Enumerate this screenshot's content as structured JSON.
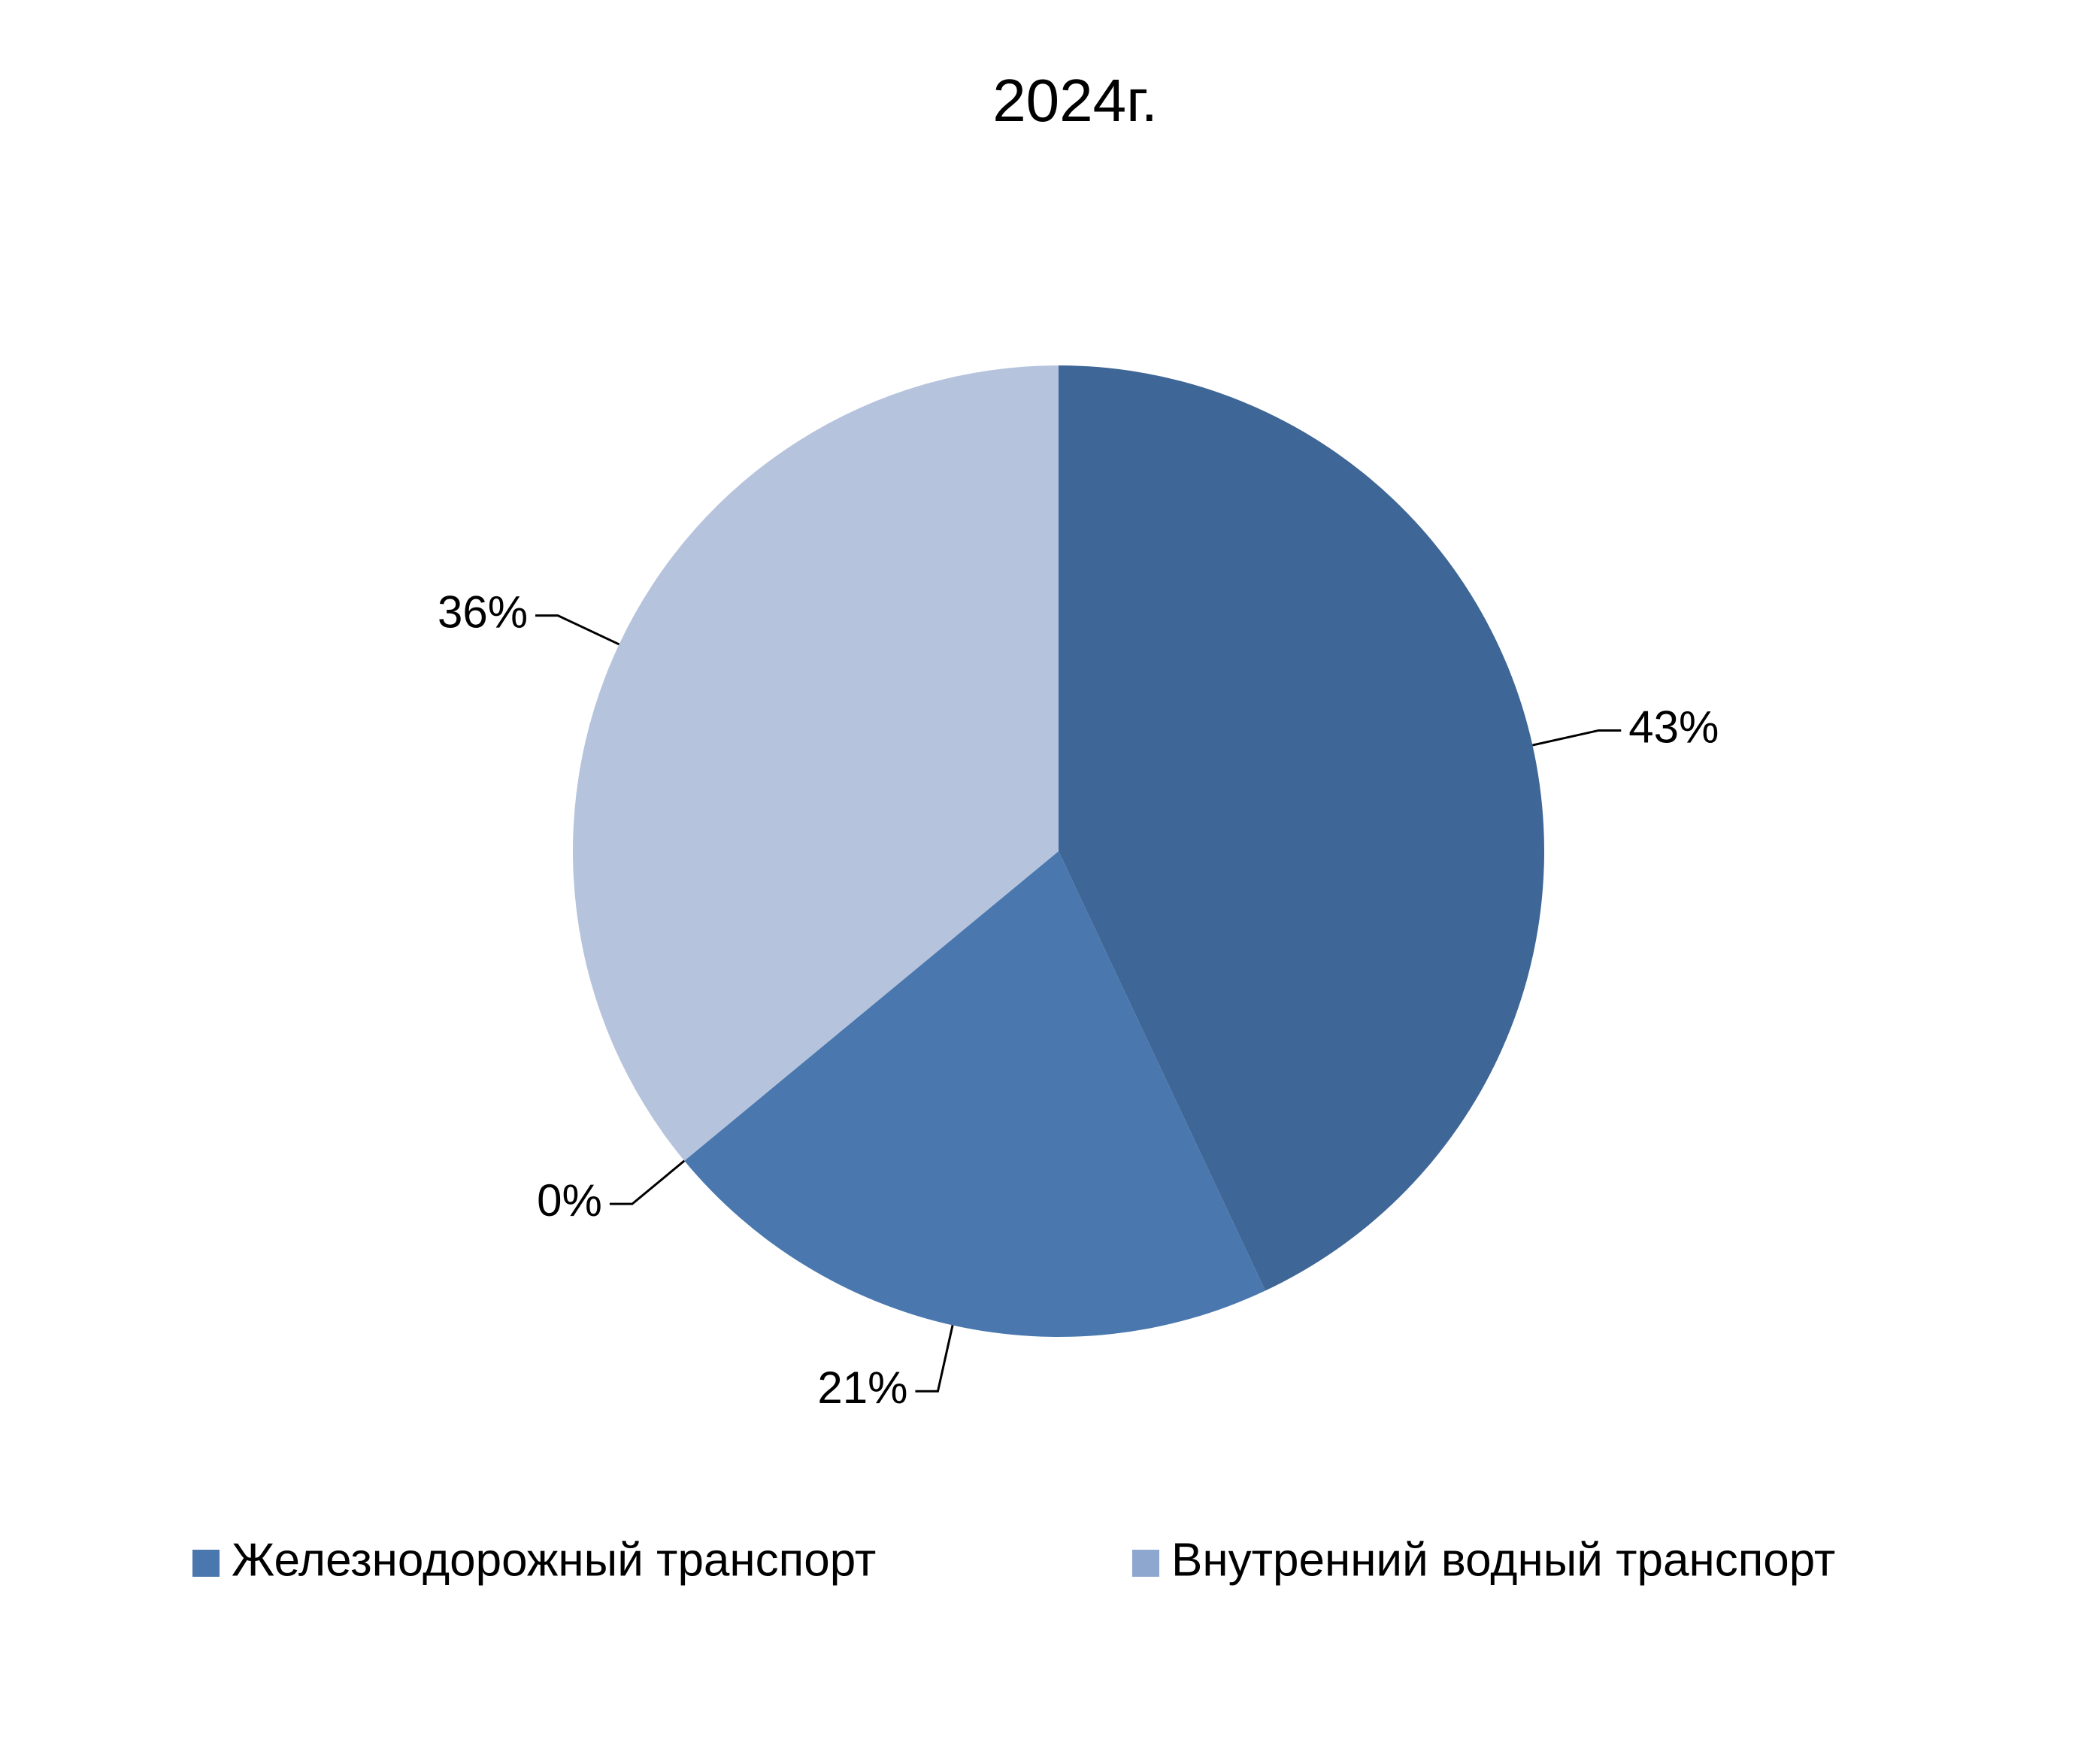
{
  "chart_data": {
    "type": "pie",
    "title": "2024г.",
    "categories": [
      null,
      "Железнодорожный транспорт",
      "Внутренний водный транспорт",
      null
    ],
    "values": [
      43,
      21,
      0,
      36
    ],
    "value_labels": [
      "43%",
      "21%",
      "0%",
      "36%"
    ],
    "colors": [
      "#3e6696",
      "#4a78ae",
      "#8ea7cf",
      "#b5c3dd"
    ],
    "legend": "bottom"
  }
}
